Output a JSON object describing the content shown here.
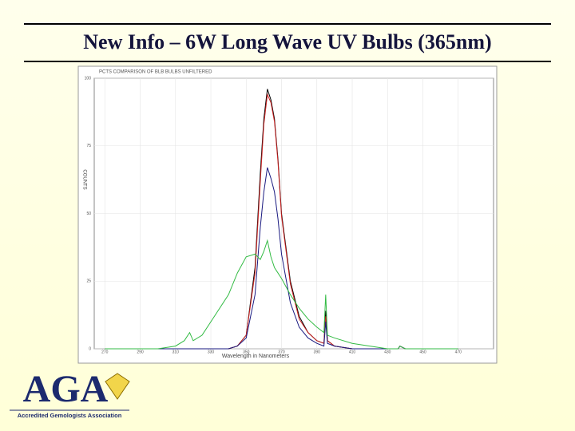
{
  "header": {
    "title": "New Info – 6W Long Wave UV Bulbs (365nm)"
  },
  "logo": {
    "name": "AGA",
    "caption": "Accredited Gemologists Association"
  },
  "chart_data": {
    "type": "line",
    "title": "PCTS COMPARISON OF BLB BULBS UNFILTERED",
    "x_label": "Wavelength in Nanometers",
    "y_label": "COUNTS",
    "x": [
      270,
      280,
      290,
      300,
      310,
      315,
      318,
      320,
      325,
      330,
      340,
      345,
      350,
      355,
      358,
      360,
      362,
      364,
      366,
      368,
      370,
      375,
      380,
      385,
      390,
      394,
      395,
      396,
      400,
      410,
      420,
      430,
      436,
      437,
      440,
      460,
      470
    ],
    "series": [
      {
        "color": "#000000",
        "values": [
          0,
          0,
          0,
          0,
          0,
          0,
          0,
          0,
          0,
          0,
          0,
          1,
          5,
          30,
          65,
          85,
          96,
          92,
          85,
          70,
          50,
          25,
          12,
          6,
          3,
          2,
          14,
          3,
          1,
          0,
          0,
          0,
          0,
          1,
          0,
          0,
          0
        ]
      },
      {
        "color": "#cc2222",
        "values": [
          0,
          0,
          0,
          0,
          0,
          0,
          0,
          0,
          0,
          0,
          0,
          1,
          5,
          28,
          62,
          83,
          94,
          91,
          84,
          69,
          49,
          24,
          11,
          6,
          3,
          2,
          12,
          3,
          1,
          0,
          0,
          0,
          0,
          1,
          0,
          0,
          0
        ]
      },
      {
        "color": "#1a1a80",
        "values": [
          0,
          0,
          0,
          0,
          0,
          0,
          0,
          0,
          0,
          0,
          0,
          1,
          4,
          20,
          45,
          58,
          67,
          63,
          58,
          48,
          35,
          17,
          8,
          4,
          2,
          1,
          10,
          2,
          1,
          0,
          0,
          0,
          0,
          1,
          0,
          0,
          0
        ]
      },
      {
        "color": "#33bb44",
        "values": [
          0,
          0,
          0,
          0,
          1,
          3,
          6,
          3,
          5,
          10,
          20,
          28,
          34,
          35,
          33,
          36,
          40,
          34,
          30,
          28,
          26,
          20,
          15,
          11,
          8,
          6,
          20,
          5,
          4,
          2,
          1,
          0,
          0,
          1,
          0,
          0,
          0
        ]
      }
    ],
    "xlim": [
      264,
      490
    ],
    "ylim": [
      0,
      100
    ],
    "xticks": [
      270,
      290,
      310,
      330,
      350,
      370,
      390,
      410,
      430,
      450,
      470
    ],
    "yticks": [
      0,
      25,
      50,
      75,
      100
    ],
    "grid": true
  }
}
